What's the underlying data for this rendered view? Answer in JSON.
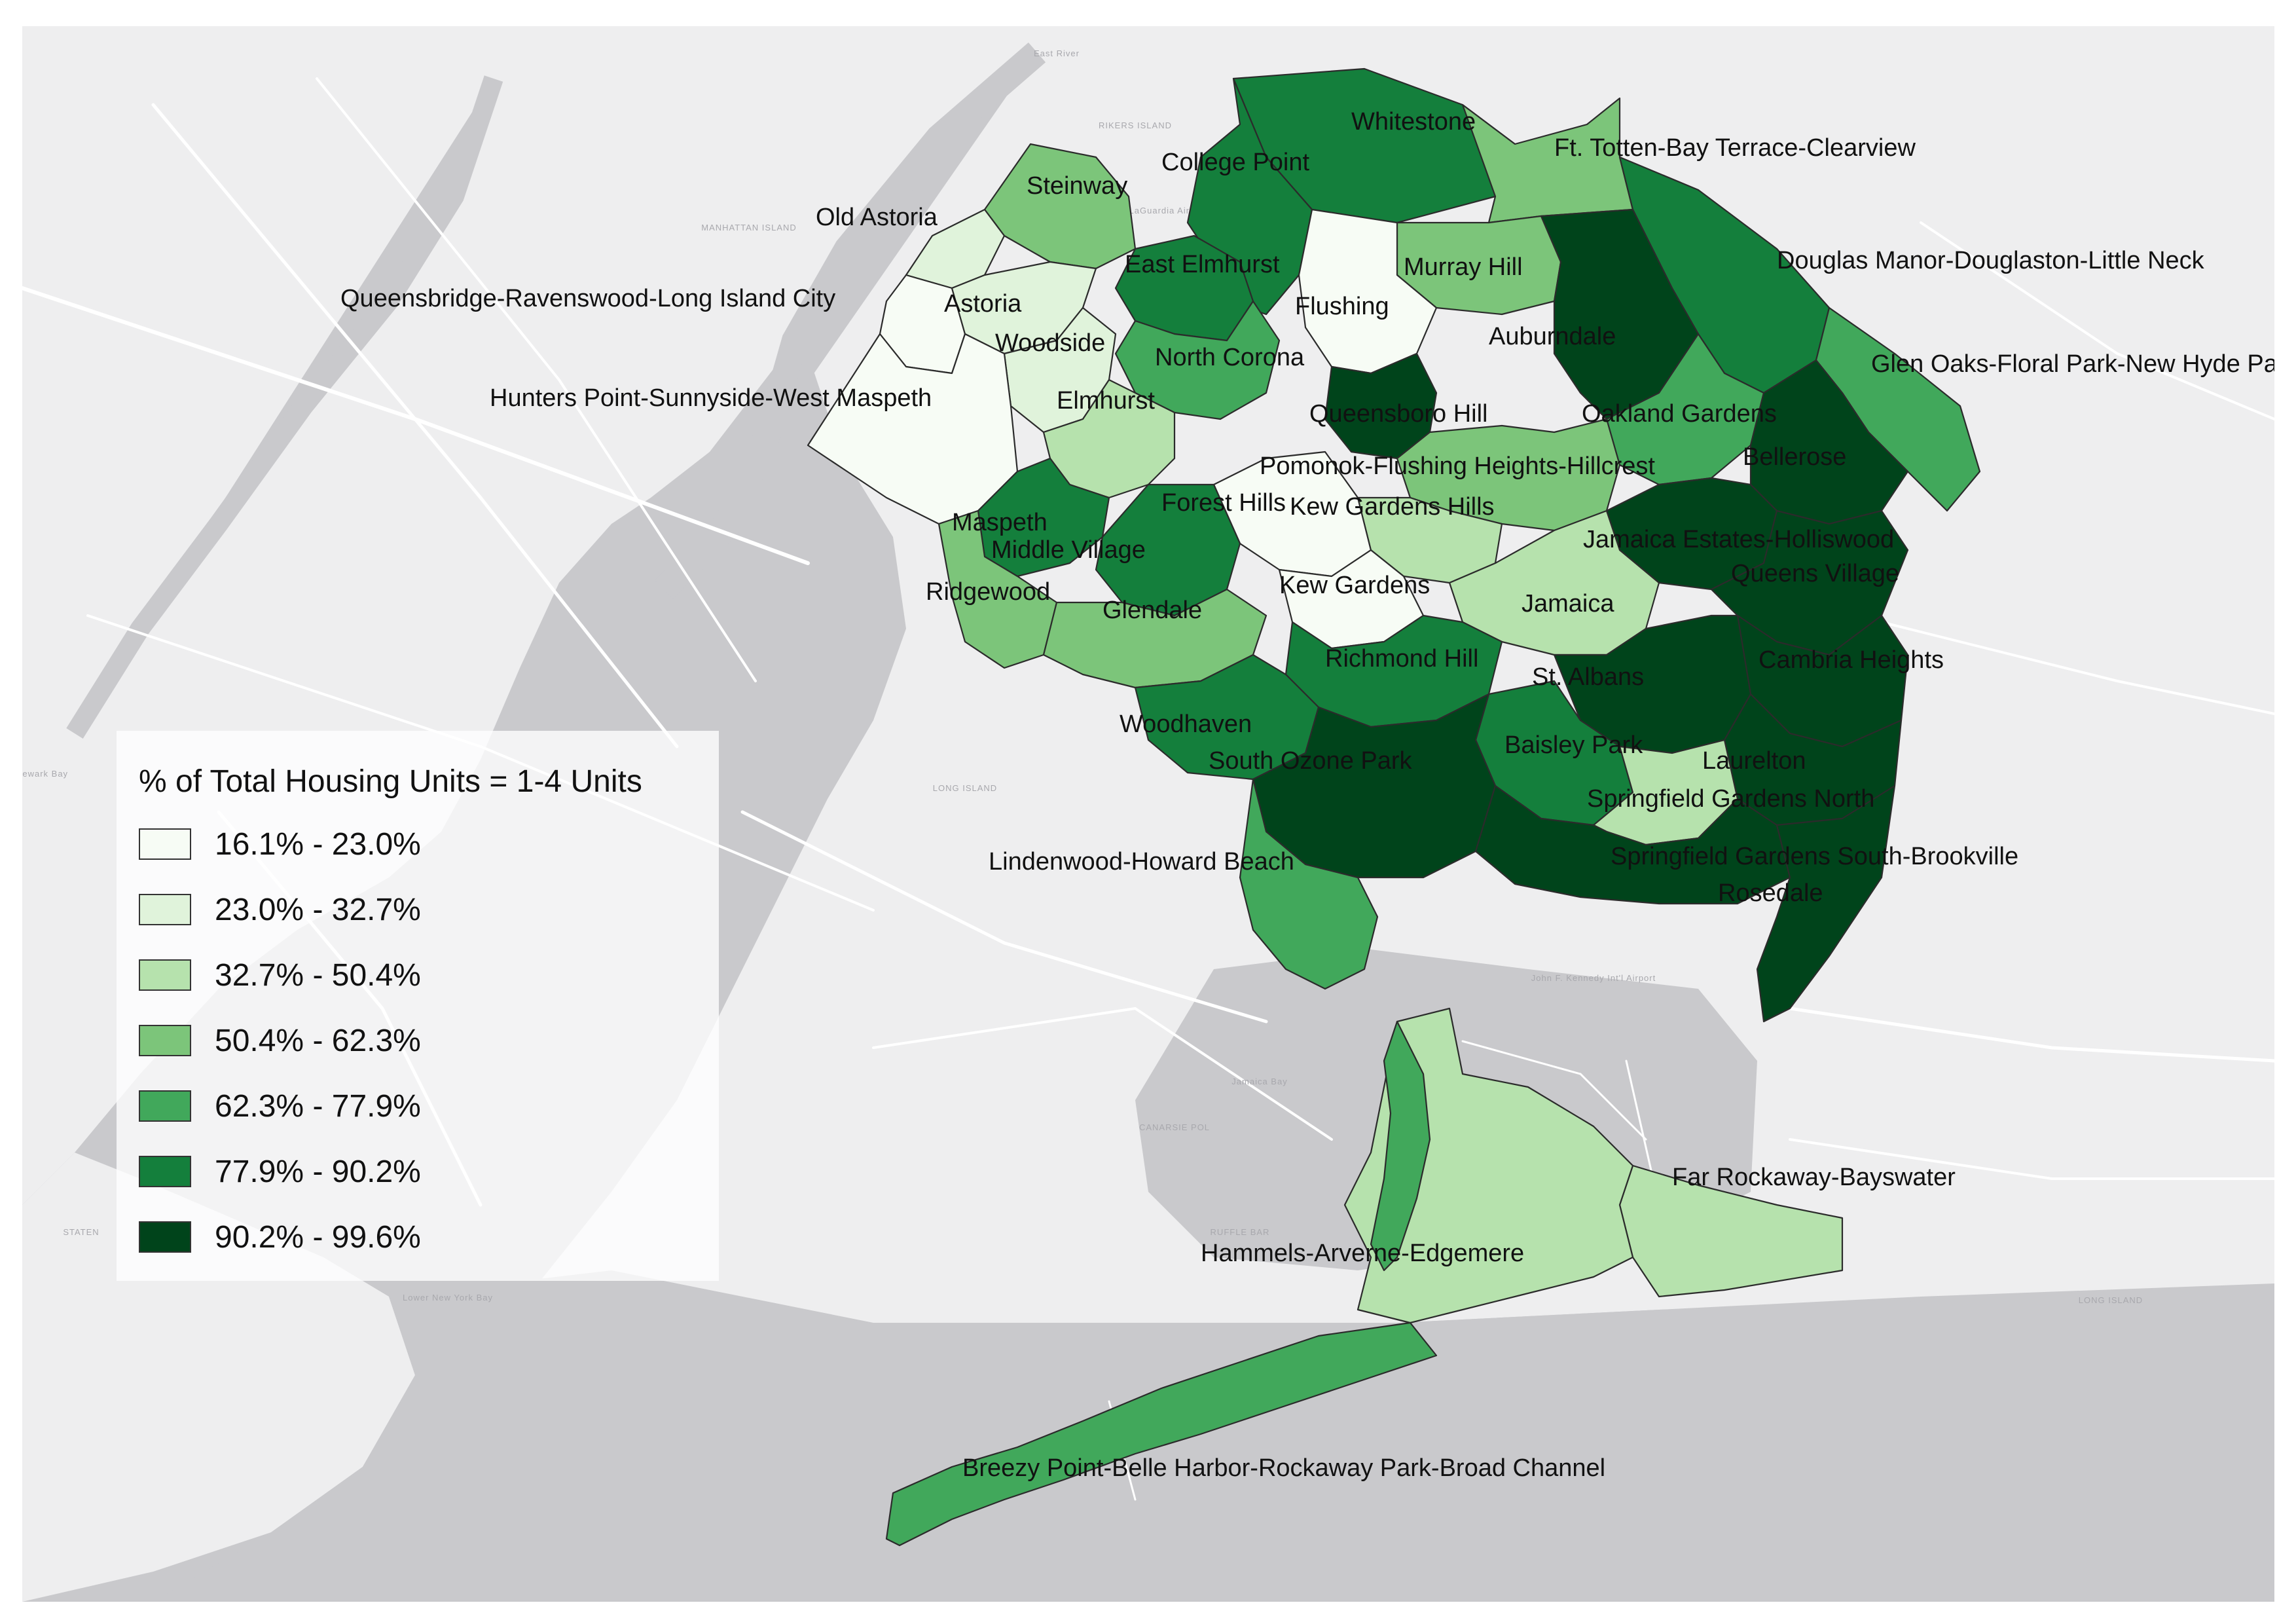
{
  "legend": {
    "title": "% of Total Housing Units = 1-4 Units",
    "items": [
      {
        "label": "16.1% - 23.0%",
        "color": "#f7fcf5"
      },
      {
        "label": "23.0% - 32.7%",
        "color": "#e0f3db"
      },
      {
        "label": "32.7% - 50.4%",
        "color": "#b6e2ad"
      },
      {
        "label": "50.4% - 62.3%",
        "color": "#7cc57a"
      },
      {
        "label": "62.3% - 77.9%",
        "color": "#41a85b"
      },
      {
        "label": "77.9% - 90.2%",
        "color": "#147f3c"
      },
      {
        "label": "90.2% - 99.6%",
        "color": "#00441b"
      }
    ]
  },
  "basemap_labels": [
    "East River",
    "RIKERS ISLAND",
    "MANHATTAN ISLAND",
    "LaGuardia Airport",
    "LONG ISLAND",
    "John F. Kennedy Int'l Airport",
    "Jamaica Bay",
    "CANARSIE POL",
    "RUFFLE BAR",
    "Lower New York Bay",
    "STATEN",
    "LONG ISLAND",
    "Newark Bay"
  ],
  "neighborhoods": [
    {
      "name": "Whitestone",
      "class": 5
    },
    {
      "name": "College Point",
      "class": 5
    },
    {
      "name": "Ft. Totten-Bay Terrace-Clearview",
      "class": 3
    },
    {
      "name": "Steinway",
      "class": 3
    },
    {
      "name": "Old Astoria",
      "class": 1
    },
    {
      "name": "Douglas Manor-Douglaston-Little Neck",
      "class": 5
    },
    {
      "name": "Queensbridge-Ravenswood-Long Island City",
      "class": 0
    },
    {
      "name": "East Elmhurst",
      "class": 5
    },
    {
      "name": "Murray Hill",
      "class": 3
    },
    {
      "name": "Astoria",
      "class": 1
    },
    {
      "name": "Flushing",
      "class": 0
    },
    {
      "name": "Auburndale",
      "class": 6
    },
    {
      "name": "Woodside",
      "class": 1
    },
    {
      "name": "North Corona",
      "class": 4
    },
    {
      "name": "Glen Oaks-Floral Park-New Hyde Park",
      "class": 4
    },
    {
      "name": "Hunters Point-Sunnyside-West Maspeth",
      "class": 0
    },
    {
      "name": "Elmhurst",
      "class": 2
    },
    {
      "name": "Queensboro Hill",
      "class": 6
    },
    {
      "name": "Oakland Gardens",
      "class": 4
    },
    {
      "name": "Bellerose",
      "class": 6
    },
    {
      "name": "Pomonok-Flushing Heights-Hillcrest",
      "class": 3
    },
    {
      "name": "Forest Hills",
      "class": 0
    },
    {
      "name": "Kew Gardens Hills",
      "class": 2
    },
    {
      "name": "Maspeth",
      "class": 5
    },
    {
      "name": "Middle Village",
      "class": 5
    },
    {
      "name": "Jamaica Estates-Holliswood",
      "class": 6
    },
    {
      "name": "Queens Village",
      "class": 6
    },
    {
      "name": "Ridgewood",
      "class": 3
    },
    {
      "name": "Kew Gardens",
      "class": 0
    },
    {
      "name": "Jamaica",
      "class": 2
    },
    {
      "name": "Glendale",
      "class": 3
    },
    {
      "name": "Richmond Hill",
      "class": 5
    },
    {
      "name": "Cambria Heights",
      "class": 6
    },
    {
      "name": "St. Albans",
      "class": 6
    },
    {
      "name": "Woodhaven",
      "class": 5
    },
    {
      "name": "Baisley Park",
      "class": 5
    },
    {
      "name": "Laurelton",
      "class": 6
    },
    {
      "name": "South Ozone Park",
      "class": 6
    },
    {
      "name": "Springfield Gardens North",
      "class": 2
    },
    {
      "name": "Lindenwood-Howard Beach",
      "class": 4
    },
    {
      "name": "Springfield Gardens South-Brookville",
      "class": 6
    },
    {
      "name": "Rosedale",
      "class": 6
    },
    {
      "name": "Far Rockaway-Bayswater",
      "class": 2
    },
    {
      "name": "Hammels-Arverne-Edgemere",
      "class": 2
    },
    {
      "name": "Breezy Point-Belle Harbor-Rockaway Park-Broad Channel",
      "class": 4
    }
  ]
}
